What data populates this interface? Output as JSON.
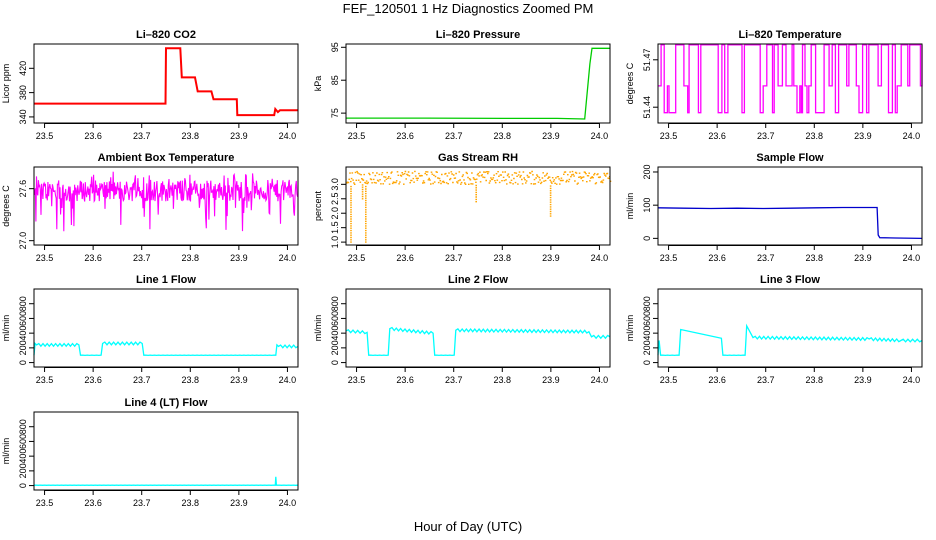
{
  "figure": {
    "title": "FEF_120501  1 Hz Diagnostics Zoomed PM",
    "xlabel": "Hour of Day (UTC)"
  },
  "chart_data": [
    {
      "type": "line",
      "title": "Li–820 CO2",
      "ylabel": "Licor ppm",
      "color": "#ff0000",
      "xlim": [
        23.5,
        24.0
      ],
      "ylim": [
        330,
        460
      ],
      "xticks": [
        23.5,
        23.6,
        23.7,
        23.8,
        23.9,
        24.0
      ],
      "xtick_labels": [
        "23.5",
        "23.6",
        "23.7",
        "23.8",
        "23.9",
        "24.0"
      ],
      "yticks": [
        340,
        380,
        420
      ],
      "ytick_labels": [
        "340",
        "380",
        "420"
      ],
      "series": [
        {
          "x": [
            23.5,
            23.749,
            23.75,
            23.777,
            23.78,
            23.805,
            23.81,
            23.836,
            23.84,
            23.884,
            23.885,
            23.955,
            23.957,
            23.962,
            23.966,
            24.0
          ],
          "y": [
            362,
            362,
            453,
            453,
            405,
            405,
            382,
            382,
            369,
            369,
            343,
            343,
            353,
            348,
            351,
            351
          ]
        }
      ]
    },
    {
      "type": "line",
      "title": "Li–820 Pressure",
      "ylabel": "kPa",
      "color": "#00cc00",
      "xlim": [
        23.5,
        24.0
      ],
      "ylim": [
        72,
        96
      ],
      "xticks": [
        23.5,
        23.6,
        23.7,
        23.8,
        23.9,
        24.0
      ],
      "xtick_labels": [
        "23.5",
        "23.6",
        "23.7",
        "23.8",
        "23.9",
        "24.0"
      ],
      "yticks": [
        75,
        85,
        95
      ],
      "ytick_labels": [
        "75",
        "85",
        "95"
      ],
      "series": [
        {
          "x": [
            23.5,
            23.65,
            23.8,
            23.9,
            23.952,
            23.956,
            23.962,
            23.966,
            24.0
          ],
          "y": [
            73.5,
            73.5,
            73.4,
            73.4,
            73.2,
            80,
            90,
            94.7,
            94.7
          ]
        }
      ]
    },
    {
      "type": "line",
      "title": "Li–820 Temperature",
      "ylabel": "degrees C",
      "color": "#ff00ff",
      "xlim": [
        23.5,
        24.0
      ],
      "ylim": [
        51.43,
        51.48
      ],
      "xticks": [
        23.5,
        23.6,
        23.7,
        23.8,
        23.9,
        24.0
      ],
      "xtick_labels": [
        "23.5",
        "23.6",
        "23.7",
        "23.8",
        "23.9",
        "24.0"
      ],
      "yticks": [
        51.44,
        51.47
      ],
      "ytick_labels": [
        "51.44",
        "51.47"
      ],
      "levels": [
        51.4365,
        51.4535,
        51.4795
      ]
    },
    {
      "type": "line",
      "title": "Ambient Box Temperature",
      "ylabel": "degrees C",
      "color": "#ff00ff",
      "xlim": [
        23.5,
        24.0
      ],
      "ylim": [
        26.95,
        27.85
      ],
      "xticks": [
        23.5,
        23.6,
        23.7,
        23.8,
        23.9,
        24.0
      ],
      "xtick_labels": [
        "23.5",
        "23.6",
        "23.7",
        "23.8",
        "23.9",
        "24.0"
      ],
      "yticks": [
        27.0,
        27.6
      ],
      "ytick_labels": [
        "27.0",
        "27.6"
      ],
      "band": [
        27.45,
        27.7
      ]
    },
    {
      "type": "scatter",
      "title": "Gas Stream RH",
      "ylabel": "percent",
      "color": "#ffa500",
      "xlim": [
        23.5,
        24.0
      ],
      "ylim": [
        0.9,
        3.6
      ],
      "xticks": [
        23.5,
        23.6,
        23.7,
        23.8,
        23.9,
        24.0
      ],
      "xtick_labels": [
        "23.5",
        "23.6",
        "23.7",
        "23.8",
        "23.9",
        "24.0"
      ],
      "yticks": [
        1.0,
        1.5,
        2.0,
        2.5,
        3.0
      ],
      "ytick_labels": [
        "1.0",
        "1.5",
        "2.0",
        "2.5",
        "3.0"
      ],
      "band": [
        3.0,
        3.45
      ]
    },
    {
      "type": "line",
      "title": "Sample Flow",
      "ylabel": "ml/min",
      "color": "#0000cc",
      "xlim": [
        23.5,
        24.0
      ],
      "ylim": [
        -20,
        215
      ],
      "xticks": [
        23.5,
        23.6,
        23.7,
        23.8,
        23.9,
        24.0
      ],
      "xtick_labels": [
        "23.5",
        "23.6",
        "23.7",
        "23.8",
        "23.9",
        "24.0"
      ],
      "yticks": [
        0,
        100,
        200
      ],
      "ytick_labels": [
        "0",
        "100",
        "200"
      ],
      "series": [
        {
          "x": [
            23.5,
            23.55,
            23.6,
            23.65,
            23.7,
            23.75,
            23.8,
            23.85,
            23.9,
            23.915,
            23.917,
            23.92,
            23.95,
            24.0
          ],
          "y": [
            92,
            91,
            90,
            91,
            90,
            91,
            92,
            93,
            93,
            93,
            10,
            2,
            1,
            0
          ]
        }
      ]
    },
    {
      "type": "line",
      "title": "Line 1 Flow",
      "ylabel": "ml/min",
      "color": "#00ffff",
      "xlim": [
        23.5,
        24.0
      ],
      "ylim": [
        -60,
        1000
      ],
      "xticks": [
        23.5,
        23.6,
        23.7,
        23.8,
        23.9,
        24.0
      ],
      "xtick_labels": [
        "23.5",
        "23.6",
        "23.7",
        "23.8",
        "23.9",
        "24.0"
      ],
      "yticks": [
        0,
        200,
        400,
        600,
        800
      ],
      "ytick_labels": [
        "0",
        "200",
        "400",
        "600",
        "800"
      ],
      "series": [
        {
          "x": [
            23.5,
            23.502,
            23.505,
            23.585,
            23.588,
            23.627,
            23.63,
            23.705,
            23.708,
            23.958,
            23.96,
            23.963,
            24.0
          ],
          "y": [
            100,
            260,
            240,
            240,
            100,
            100,
            260,
            260,
            100,
            100,
            240,
            220,
            220
          ]
        }
      ]
    },
    {
      "type": "line",
      "title": "Line 2 Flow",
      "ylabel": "ml/min",
      "color": "#00ffff",
      "xlim": [
        23.5,
        24.0
      ],
      "ylim": [
        -60,
        1000
      ],
      "xticks": [
        23.5,
        23.6,
        23.7,
        23.8,
        23.9,
        24.0
      ],
      "xtick_labels": [
        "23.5",
        "23.6",
        "23.7",
        "23.8",
        "23.9",
        "24.0"
      ],
      "yticks": [
        0,
        200,
        400,
        600,
        800
      ],
      "ytick_labels": [
        "0",
        "200",
        "400",
        "600",
        "800"
      ],
      "series": [
        {
          "x": [
            23.5,
            23.54,
            23.543,
            23.58,
            23.583,
            23.665,
            23.668,
            23.705,
            23.708,
            23.96,
            23.965,
            24.0
          ],
          "y": [
            430,
            410,
            100,
            100,
            460,
            400,
            100,
            100,
            440,
            420,
            350,
            350
          ]
        }
      ]
    },
    {
      "type": "line",
      "title": "Line 3 Flow",
      "ylabel": "ml/min",
      "color": "#00ffff",
      "xlim": [
        23.5,
        24.0
      ],
      "ylim": [
        -60,
        1000
      ],
      "xticks": [
        23.5,
        23.6,
        23.7,
        23.8,
        23.9,
        24.0
      ],
      "xtick_labels": [
        "23.5",
        "23.6",
        "23.7",
        "23.8",
        "23.9",
        "24.0"
      ],
      "yticks": [
        0,
        200,
        400,
        600,
        800
      ],
      "ytick_labels": [
        "0",
        "200",
        "400",
        "600",
        "800"
      ],
      "series": [
        {
          "x": [
            23.5,
            23.502,
            23.505,
            23.54,
            23.543,
            23.62,
            23.623,
            23.665,
            23.668,
            23.68,
            23.9,
            23.96,
            24.0
          ],
          "y": [
            100,
            300,
            100,
            100,
            450,
            330,
            100,
            100,
            500,
            340,
            320,
            300,
            300
          ]
        }
      ]
    },
    {
      "type": "line",
      "title": "Line 4 (LT) Flow",
      "ylabel": "ml/min",
      "color": "#00ffff",
      "xlim": [
        23.5,
        24.0
      ],
      "ylim": [
        -60,
        1000
      ],
      "xticks": [
        23.5,
        23.6,
        23.7,
        23.8,
        23.9,
        24.0
      ],
      "xtick_labels": [
        "23.5",
        "23.6",
        "23.7",
        "23.8",
        "23.9",
        "24.0"
      ],
      "yticks": [
        0,
        200,
        400,
        600,
        800
      ],
      "ytick_labels": [
        "0",
        "200",
        "400",
        "600",
        "800"
      ],
      "series": [
        {
          "x": [
            23.5,
            23.957,
            23.958,
            23.959,
            23.96,
            24.0
          ],
          "y": [
            5,
            5,
            120,
            5,
            5,
            5
          ]
        }
      ]
    }
  ]
}
